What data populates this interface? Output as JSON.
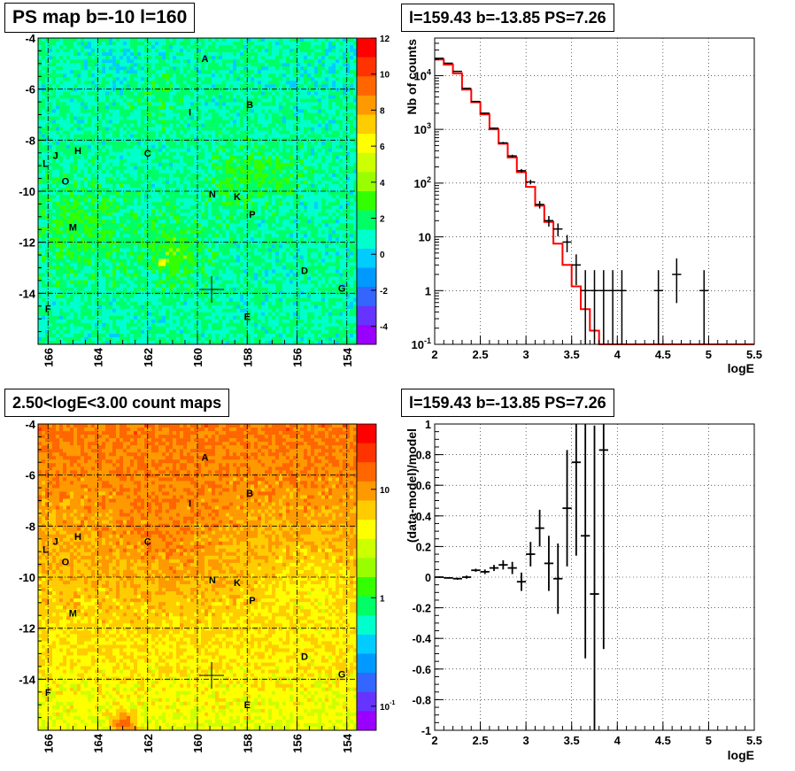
{
  "palette": [
    "#ff0000",
    "#ff3300",
    "#ff6600",
    "#ff9900",
    "#ffcc00",
    "#ffff00",
    "#ccff00",
    "#99ff00",
    "#33ff00",
    "#00ff66",
    "#00ffcc",
    "#00ccff",
    "#0099ff",
    "#3366ff",
    "#6633ff",
    "#9900ff"
  ],
  "chart_data": [
    {
      "id": "ps-map",
      "type": "heatmap",
      "title": "PS map b=-10 l=160",
      "x_ticks": [
        "166",
        "164",
        "162",
        "160",
        "158",
        "156",
        "154"
      ],
      "x_tick_values": [
        166,
        164,
        162,
        160,
        158,
        156,
        154
      ],
      "xlim": [
        166.4,
        153.6
      ],
      "y_ticks": [
        "-4",
        "-6",
        "-8",
        "-10",
        "-12",
        "-14"
      ],
      "y_tick_values": [
        -4,
        -6,
        -8,
        -10,
        -12,
        -14
      ],
      "ylim": [
        -4,
        -16
      ],
      "colorbar_ticks": [
        "12",
        "10",
        "8",
        "6",
        "4",
        "2",
        "0",
        "-2",
        "-4"
      ],
      "colorbar_tick_values": [
        12,
        10,
        8,
        6,
        4,
        2,
        0,
        -2,
        -4
      ],
      "colorbar_range": [
        -5,
        12
      ],
      "colorbar_scale": "linear",
      "sources": [
        {
          "label": "A",
          "l": 159.7,
          "b": -4.8
        },
        {
          "label": "B",
          "l": 157.9,
          "b": -6.6
        },
        {
          "label": "I",
          "l": 160.3,
          "b": -6.9
        },
        {
          "label": "C",
          "l": 162.0,
          "b": -8.5
        },
        {
          "label": "H",
          "l": 164.8,
          "b": -8.4
        },
        {
          "label": "J",
          "l": 165.7,
          "b": -8.6
        },
        {
          "label": "L",
          "l": 166.1,
          "b": -8.9
        },
        {
          "label": "O",
          "l": 165.3,
          "b": -9.6
        },
        {
          "label": "N",
          "l": 159.4,
          "b": -10.1
        },
        {
          "label": "K",
          "l": 158.4,
          "b": -10.2
        },
        {
          "label": "P",
          "l": 157.8,
          "b": -10.9
        },
        {
          "label": "M",
          "l": 165.0,
          "b": -11.4
        },
        {
          "label": "D",
          "l": 155.7,
          "b": -13.1
        },
        {
          "label": "G",
          "l": 154.2,
          "b": -13.8
        },
        {
          "label": "F",
          "l": 166.0,
          "b": -14.6
        },
        {
          "label": "E",
          "l": 158.0,
          "b": -14.9
        }
      ],
      "cross": {
        "l": 159.43,
        "b": -13.85
      }
    },
    {
      "id": "spectrum",
      "type": "line",
      "title": "l=159.43 b=-13.85 PS=7.26",
      "xlabel": "logE",
      "ylabel": "Nb of counts",
      "xlim": [
        2,
        5.5
      ],
      "ylim": [
        0.1,
        50000
      ],
      "y_scale": "log",
      "x_ticks": [
        "2",
        "2.5",
        "3",
        "3.5",
        "4",
        "4.5",
        "5",
        "5.5"
      ],
      "x_tick_values": [
        2,
        2.5,
        3,
        3.5,
        4,
        4.5,
        5,
        5.5
      ],
      "y_ticks": [
        "10^-1",
        "1",
        "10",
        "10^2",
        "10^3",
        "10^4"
      ],
      "y_tick_values": [
        0.1,
        1,
        10,
        100,
        1000,
        10000
      ],
      "bin_edges": [
        2.0,
        2.1,
        2.2,
        2.3,
        2.4,
        2.5,
        2.6,
        2.7,
        2.8,
        2.9,
        3.0,
        3.1,
        3.2,
        3.3,
        3.4,
        3.5,
        3.6,
        3.7,
        3.8,
        3.9,
        4.0,
        4.1,
        4.2,
        4.3,
        4.4,
        4.5,
        4.6,
        4.7,
        4.8,
        4.9,
        5.0,
        5.1,
        5.2,
        5.3,
        5.4,
        5.5
      ],
      "model": [
        20000,
        16000,
        11000,
        5500,
        3200,
        1900,
        1000,
        540,
        300,
        160,
        85,
        38,
        19,
        7.5,
        3,
        1.2,
        0.45,
        0.18,
        0.1,
        0.1,
        0.1,
        0.1,
        0.1,
        0.1,
        0.1,
        0.1,
        0.1,
        0.1,
        0.1,
        0.1,
        0.1,
        0.1,
        0.1,
        0.1,
        0.1
      ],
      "data": [
        {
          "x": 2.05,
          "y": 21000
        },
        {
          "x": 2.15,
          "y": 17000
        },
        {
          "x": 2.25,
          "y": 12000
        },
        {
          "x": 2.35,
          "y": 5800
        },
        {
          "x": 2.45,
          "y": 3300
        },
        {
          "x": 2.55,
          "y": 2000
        },
        {
          "x": 2.65,
          "y": 1050
        },
        {
          "x": 2.75,
          "y": 560
        },
        {
          "x": 2.85,
          "y": 320
        },
        {
          "x": 2.95,
          "y": 170
        },
        {
          "x": 3.05,
          "y": 105
        },
        {
          "x": 3.15,
          "y": 40
        },
        {
          "x": 3.25,
          "y": 20
        },
        {
          "x": 3.35,
          "y": 14
        },
        {
          "x": 3.45,
          "y": 8
        },
        {
          "x": 3.55,
          "y": 3
        },
        {
          "x": 3.65,
          "y": 1
        },
        {
          "x": 3.75,
          "y": 1
        },
        {
          "x": 3.85,
          "y": 1
        },
        {
          "x": 3.95,
          "y": 1
        },
        {
          "x": 4.05,
          "y": 1
        },
        {
          "x": 4.45,
          "y": 1
        },
        {
          "x": 4.65,
          "y": 2
        },
        {
          "x": 4.95,
          "y": 1
        }
      ]
    },
    {
      "id": "count-map",
      "type": "heatmap",
      "title": "2.50<logE<3.00 count maps",
      "x_ticks": [
        "166",
        "164",
        "162",
        "160",
        "158",
        "156",
        "154"
      ],
      "x_tick_values": [
        166,
        164,
        162,
        160,
        158,
        156,
        154
      ],
      "xlim": [
        166.4,
        153.6
      ],
      "y_ticks": [
        "-4",
        "-6",
        "-8",
        "-10",
        "-12",
        "-14"
      ],
      "y_tick_values": [
        -4,
        -6,
        -8,
        -10,
        -12,
        -14
      ],
      "ylim": [
        -4,
        -16
      ],
      "colorbar_ticks": [
        "10",
        "1",
        "10^-1"
      ],
      "colorbar_tick_values": [
        10,
        1,
        0.1
      ],
      "colorbar_range": [
        0.06,
        40
      ],
      "colorbar_scale": "log",
      "sources": [
        {
          "label": "A",
          "l": 159.7,
          "b": -5.3
        },
        {
          "label": "B",
          "l": 157.9,
          "b": -6.7
        },
        {
          "label": "I",
          "l": 160.3,
          "b": -7.1
        },
        {
          "label": "C",
          "l": 162.0,
          "b": -8.6
        },
        {
          "label": "H",
          "l": 164.8,
          "b": -8.4
        },
        {
          "label": "J",
          "l": 165.7,
          "b": -8.6
        },
        {
          "label": "L",
          "l": 166.1,
          "b": -8.9
        },
        {
          "label": "O",
          "l": 165.3,
          "b": -9.4
        },
        {
          "label": "N",
          "l": 159.4,
          "b": -10.1
        },
        {
          "label": "K",
          "l": 158.4,
          "b": -10.2
        },
        {
          "label": "P",
          "l": 157.8,
          "b": -10.9
        },
        {
          "label": "M",
          "l": 165.0,
          "b": -11.4
        },
        {
          "label": "D",
          "l": 155.7,
          "b": -13.1
        },
        {
          "label": "G",
          "l": 154.2,
          "b": -13.8
        },
        {
          "label": "F",
          "l": 166.0,
          "b": -14.5
        },
        {
          "label": "E",
          "l": 158.0,
          "b": -15.0
        }
      ],
      "cross": {
        "l": 159.43,
        "b": -13.85
      }
    },
    {
      "id": "residual",
      "type": "scatter",
      "title": "l=159.43 b=-13.85 PS=7.26",
      "xlabel": "logE",
      "ylabel": "(data-model)/model",
      "xlim": [
        2,
        5.5
      ],
      "ylim": [
        -1,
        1
      ],
      "x_ticks": [
        "2",
        "2.5",
        "3",
        "3.5",
        "4",
        "4.5",
        "5",
        "5.5"
      ],
      "x_tick_values": [
        2,
        2.5,
        3,
        3.5,
        4,
        4.5,
        5,
        5.5
      ],
      "y_ticks": [
        "1",
        "0.8",
        "0.6",
        "0.4",
        "0.2",
        "0",
        "-0.2",
        "-0.4",
        "-0.6",
        "-0.8",
        "-1"
      ],
      "y_tick_values": [
        1,
        0.8,
        0.6,
        0.4,
        0.2,
        0,
        -0.2,
        -0.4,
        -0.6,
        -0.8,
        -1
      ],
      "data": [
        {
          "x": 2.05,
          "y": 0.0,
          "err": 0.005
        },
        {
          "x": 2.15,
          "y": -0.005,
          "err": 0.005
        },
        {
          "x": 2.25,
          "y": -0.01,
          "err": 0.007
        },
        {
          "x": 2.35,
          "y": 0.0,
          "err": 0.01
        },
        {
          "x": 2.45,
          "y": 0.045,
          "err": 0.01
        },
        {
          "x": 2.55,
          "y": 0.035,
          "err": 0.015
        },
        {
          "x": 2.65,
          "y": 0.06,
          "err": 0.02
        },
        {
          "x": 2.75,
          "y": 0.08,
          "err": 0.03
        },
        {
          "x": 2.85,
          "y": 0.06,
          "err": 0.04
        },
        {
          "x": 2.95,
          "y": -0.03,
          "err": 0.06
        },
        {
          "x": 3.05,
          "y": 0.15,
          "err": 0.08
        },
        {
          "x": 3.15,
          "y": 0.32,
          "err": 0.12
        },
        {
          "x": 3.25,
          "y": 0.09,
          "err": 0.18
        },
        {
          "x": 3.35,
          "y": -0.01,
          "err": 0.23
        },
        {
          "x": 3.45,
          "y": 0.45,
          "err": 0.38
        },
        {
          "x": 3.55,
          "y": 0.75,
          "err": 0.61
        },
        {
          "x": 3.65,
          "y": 0.27,
          "err": 0.8
        },
        {
          "x": 3.75,
          "y": -0.11,
          "err": 1.1
        },
        {
          "x": 3.85,
          "y": 0.83,
          "err": 1.3
        }
      ]
    }
  ]
}
